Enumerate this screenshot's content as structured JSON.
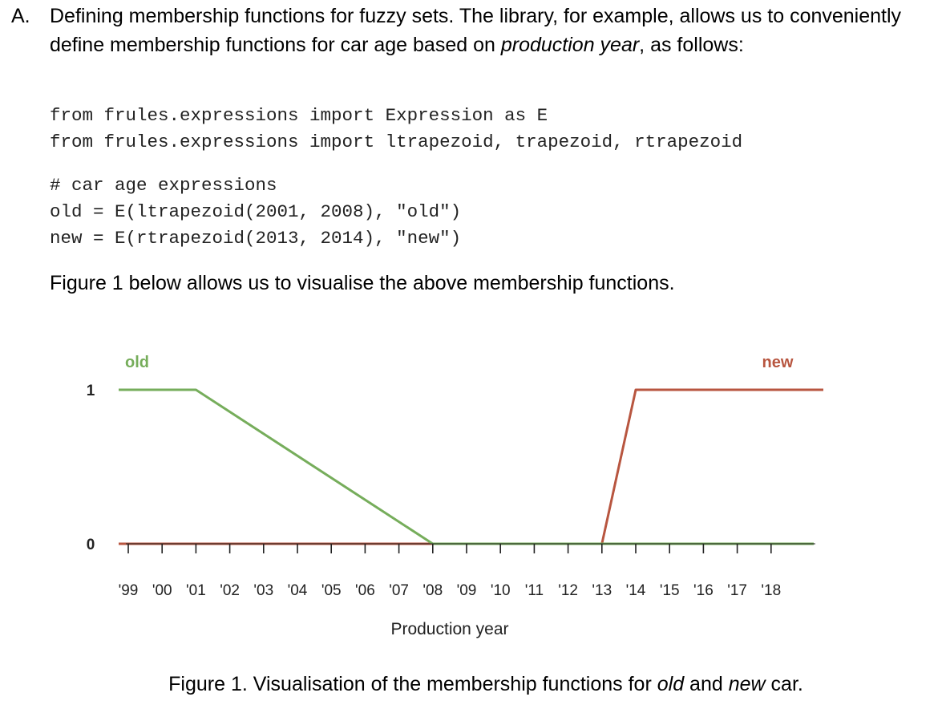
{
  "section": {
    "marker": "A.",
    "lead": "Defining membership functions for fuzzy sets. The library, for example, allows us to conveniently define membership functions for car age based on ",
    "emphasis": "production year",
    "tail": ", as follows:"
  },
  "code_block_1": [
    "from frules.expressions import Expression as E",
    "from frules.expressions import ltrapezoid, trapezoid, rtrapezoid"
  ],
  "code_block_2": [
    "# car age expressions",
    "old = E(ltrapezoid(2001, 2008), \"old\")",
    "new = E(rtrapezoid(2013, 2014), \"new\")"
  ],
  "figure_intro": "Figure 1 below allows us to visualise the above membership functions.",
  "chart_data": {
    "type": "line",
    "title": "",
    "xlabel": "Production year",
    "ylabel": "",
    "categories": [
      "'99",
      "'00",
      "'01",
      "'02",
      "'03",
      "'04",
      "'05",
      "'06",
      "'07",
      "'08",
      "'09",
      "'10",
      "'11",
      "'12",
      "'13",
      "'14",
      "'15",
      "'16",
      "'17",
      "'18"
    ],
    "y_ticks": [
      "0",
      "1"
    ],
    "ylim": [
      0,
      1
    ],
    "grid": false,
    "series": [
      {
        "name": "old",
        "color": "#76ad5b",
        "points": [
          {
            "x": "'99",
            "y": 1
          },
          {
            "x": "'01",
            "y": 1
          },
          {
            "x": "'08",
            "y": 0
          },
          {
            "x": "'18",
            "y": 0
          }
        ]
      },
      {
        "name": "new",
        "color": "#b85640",
        "points": [
          {
            "x": "'99",
            "y": 0
          },
          {
            "x": "'13",
            "y": 0
          },
          {
            "x": "'14",
            "y": 1
          },
          {
            "x": "'18",
            "y": 1
          }
        ]
      }
    ]
  },
  "caption": {
    "lead": "Figure 1. Visualisation of the membership functions for ",
    "em1": "old",
    "mid": " and ",
    "em2": "new",
    "tail": " car."
  }
}
